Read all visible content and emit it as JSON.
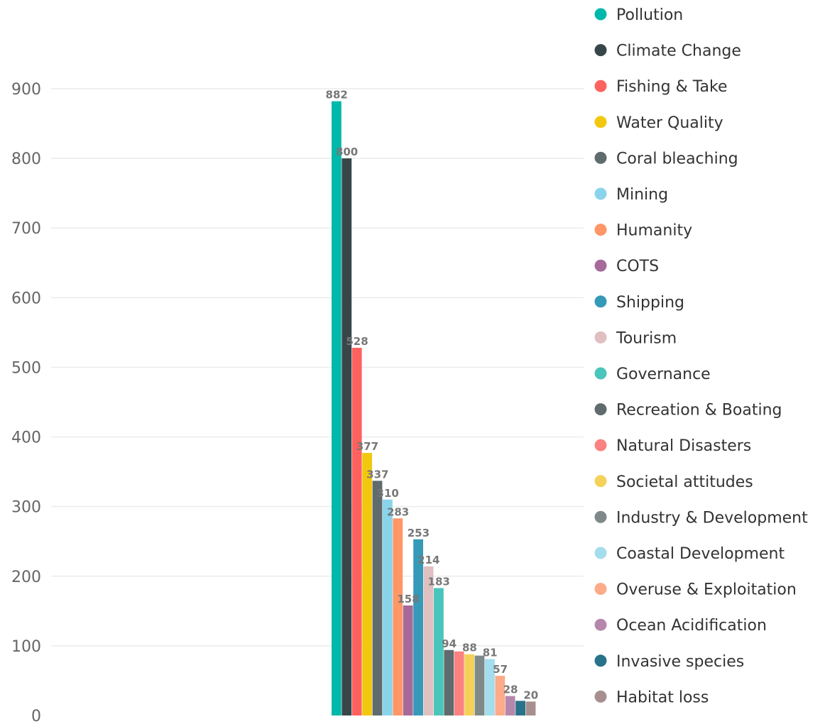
{
  "chart_data": {
    "type": "bar",
    "title": "",
    "xlabel": "",
    "ylabel": "",
    "ylim": [
      0,
      900
    ],
    "yticks": [
      0,
      100,
      200,
      300,
      400,
      500,
      600,
      700,
      800,
      900
    ],
    "grid": true,
    "legend_position": "right",
    "series": [
      {
        "name": "Pollution",
        "value": 882,
        "label": "882",
        "color": "#01B8AA"
      },
      {
        "name": "Climate Change",
        "value": 800,
        "label": "800",
        "color": "#374649"
      },
      {
        "name": "Fishing & Take",
        "value": 528,
        "label": "528",
        "color": "#FD625E"
      },
      {
        "name": "Water Quality",
        "value": 377,
        "label": "377",
        "color": "#F2C80F"
      },
      {
        "name": "Coral bleaching",
        "value": 337,
        "label": "337",
        "color": "#5F6B6D"
      },
      {
        "name": "Mining",
        "value": 310,
        "label": "310",
        "color": "#8AD4EB"
      },
      {
        "name": "Humanity",
        "value": 283,
        "label": "283",
        "color": "#FE9666"
      },
      {
        "name": "COTS",
        "value": 158,
        "label": "158",
        "color": "#A66999"
      },
      {
        "name": "Shipping",
        "value": 253,
        "label": "253",
        "color": "#3599B8"
      },
      {
        "name": "Tourism",
        "value": 214,
        "label": "214",
        "color": "#DFBFBF"
      },
      {
        "name": "Governance",
        "value": 183,
        "label": "183",
        "color": "#4AC5BB"
      },
      {
        "name": "Recreation & Boating",
        "value": 94,
        "label": "94",
        "color": "#5F6B6D"
      },
      {
        "name": "Natural Disasters",
        "value": 92,
        "label": "",
        "color": "#FB8281"
      },
      {
        "name": "Societal attitudes",
        "value": 88,
        "label": "88",
        "color": "#F4D25A"
      },
      {
        "name": "Industry & Development",
        "value": 86,
        "label": "",
        "color": "#7F898A"
      },
      {
        "name": "Coastal Development",
        "value": 81,
        "label": "81",
        "color": "#A4DDEE"
      },
      {
        "name": "Overuse & Exploitation",
        "value": 57,
        "label": "57",
        "color": "#FDAB89"
      },
      {
        "name": "Ocean Acidification",
        "value": 28,
        "label": "28",
        "color": "#B687AC"
      },
      {
        "name": "Invasive species",
        "value": 21,
        "label": "",
        "color": "#28738A"
      },
      {
        "name": "Habitat loss",
        "value": 20,
        "label": "20",
        "color": "#A78F8F"
      }
    ]
  }
}
